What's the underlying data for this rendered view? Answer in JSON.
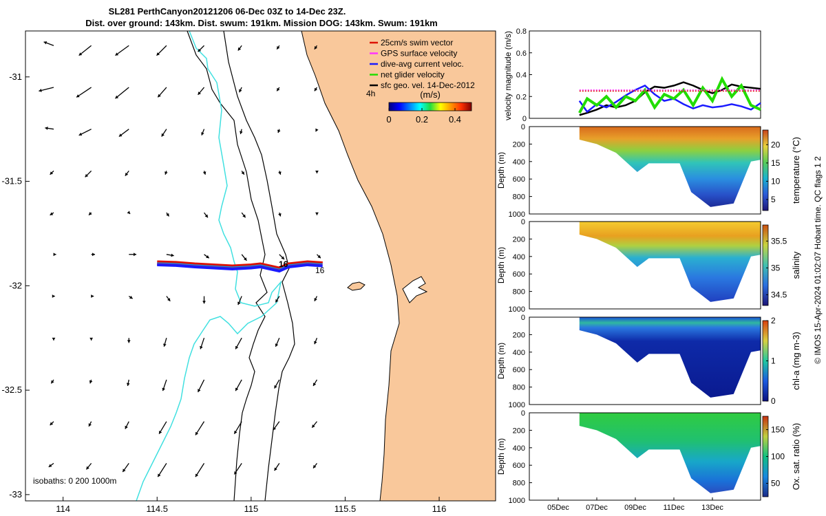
{
  "header": {
    "title_line1": "SL281 PerthCanyon20121206 06-Dec 03Z to 14-Dec 23Z.",
    "title_line2": "Dist. over ground: 143km. Dist. swum: 191km. Mission DOG: 143km. Swum: 191km"
  },
  "credit": "© IMOS 15-Apr-2024 01:02:07 Hobart time. QC flags 1  2",
  "colors": {
    "land": "#f9c89b",
    "sea": "#ffffff",
    "swim": "#dd1100",
    "gps": "#ff33ff",
    "dive_avg": "#1a1aff",
    "net_glider": "#22dd00",
    "sfc": "#000000",
    "trajectory_marker": "#0099ff",
    "isobath_0": "#40e0e0"
  },
  "chart_data": [
    {
      "type": "map",
      "xlabel": "",
      "ylabel": "",
      "xlim": [
        113.8,
        116.3
      ],
      "ylim": [
        -33.03,
        -30.78
      ],
      "xticks": [
        "114",
        "114.5",
        "115",
        "115.5",
        "116"
      ],
      "yticks": [
        "-31",
        "-31.5",
        "-32",
        "-32.5",
        "-33"
      ],
      "legend": [
        {
          "label": "25cm/s swim vector",
          "color": "#dd1100"
        },
        {
          "label": "GPS surface velocity",
          "color": "#ff33ff"
        },
        {
          "label": "dive-avg current veloc.",
          "color": "#1a1aff"
        },
        {
          "label": "net glider velocity",
          "color": "#22dd00"
        },
        {
          "label": "sfc geo. vel. 14-Dec-2012",
          "color": "#000000"
        }
      ],
      "colorbar": {
        "label": "(m/s)",
        "corner_label": "4h",
        "ticks": [
          "0",
          "0.2",
          "0.4"
        ],
        "range": [
          0,
          0.5
        ]
      },
      "isobath_label": "isobaths: 0   200  1000m",
      "day_labels": [
        "16",
        "16"
      ],
      "track": {
        "lon": [
          114.5,
          114.6,
          114.7,
          114.8,
          114.9,
          115.0,
          115.05,
          115.1,
          115.15,
          115.2,
          115.25,
          115.3,
          115.38
        ],
        "lat": [
          -31.89,
          -31.893,
          -31.9,
          -31.905,
          -31.91,
          -31.905,
          -31.9,
          -31.91,
          -31.92,
          -31.9,
          -31.895,
          -31.89,
          -31.895
        ]
      },
      "vectors": {
        "lons": [
          113.95,
          114.15,
          114.35,
          114.55,
          114.75,
          114.95,
          115.15,
          115.35
        ],
        "lats": [
          -30.85,
          -31.05,
          -31.25,
          -31.45,
          -31.65,
          -31.85,
          -32.05,
          -32.25,
          -32.45,
          -32.65,
          -32.85
        ],
        "u": [
          [
            -0.08,
            -0.1,
            -0.11,
            -0.08,
            -0.05,
            -0.03,
            -0.02,
            -0.02
          ],
          [
            -0.12,
            -0.12,
            -0.11,
            -0.07,
            -0.05,
            -0.02,
            -0.02,
            -0.02
          ],
          [
            -0.07,
            -0.1,
            -0.08,
            -0.04,
            -0.02,
            -0.01,
            -0.01,
            -0.01
          ],
          [
            -0.03,
            -0.05,
            -0.03,
            -0.01,
            0.01,
            0.02,
            0.01,
            0.0
          ],
          [
            -0.03,
            -0.02,
            0.01,
            0.02,
            0.03,
            0.03,
            0.01,
            0.0
          ],
          [
            0.02,
            0.03,
            0.06,
            0.06,
            0.04,
            0.04,
            0.04,
            0.03
          ],
          [
            0.01,
            0.02,
            0.03,
            0.03,
            0.0,
            -0.03,
            -0.03,
            -0.02
          ],
          [
            0.0,
            0.0,
            0.0,
            -0.02,
            -0.03,
            -0.05,
            -0.03,
            -0.02
          ],
          [
            -0.02,
            -0.01,
            -0.01,
            -0.03,
            -0.05,
            -0.05,
            -0.04,
            -0.03
          ],
          [
            -0.03,
            -0.02,
            -0.03,
            -0.06,
            -0.07,
            -0.06,
            -0.05,
            -0.04
          ],
          [
            -0.04,
            -0.04,
            -0.05,
            -0.07,
            -0.07,
            -0.06,
            -0.04,
            -0.03
          ]
        ],
        "v": [
          [
            0.03,
            -0.08,
            -0.08,
            -0.08,
            -0.05,
            -0.04,
            -0.03,
            -0.03
          ],
          [
            -0.03,
            -0.08,
            -0.09,
            -0.08,
            -0.06,
            -0.04,
            -0.03,
            -0.03
          ],
          [
            0.01,
            -0.05,
            -0.06,
            -0.06,
            -0.05,
            -0.04,
            -0.03,
            -0.02
          ],
          [
            -0.03,
            -0.05,
            -0.04,
            -0.03,
            -0.03,
            -0.03,
            -0.03,
            -0.02
          ],
          [
            -0.02,
            -0.02,
            -0.01,
            -0.03,
            -0.04,
            -0.04,
            -0.03,
            -0.02
          ],
          [
            0.0,
            0.0,
            0.0,
            -0.01,
            -0.03,
            -0.05,
            -0.04,
            -0.03
          ],
          [
            0.0,
            0.0,
            -0.02,
            -0.04,
            -0.06,
            -0.07,
            -0.05,
            -0.04
          ],
          [
            -0.02,
            -0.02,
            -0.04,
            -0.07,
            -0.09,
            -0.09,
            -0.07,
            -0.05
          ],
          [
            -0.03,
            -0.03,
            -0.05,
            -0.09,
            -0.1,
            -0.09,
            -0.07,
            -0.05
          ],
          [
            -0.03,
            -0.04,
            -0.06,
            -0.1,
            -0.11,
            -0.1,
            -0.07,
            -0.05
          ],
          [
            -0.03,
            -0.05,
            -0.07,
            -0.11,
            -0.11,
            -0.09,
            -0.06,
            -0.04
          ]
        ]
      }
    },
    {
      "type": "line",
      "ylabel": "velocity magnitude (m/s)",
      "xlim": [
        3.5,
        15.5
      ],
      "ylim": [
        0,
        0.8
      ],
      "yticks": [
        "0",
        "0.2",
        "0.4",
        "0.6",
        "0.8"
      ],
      "series": [
        {
          "name": "sfc geo. vel.",
          "color": "#000000",
          "x": [
            6.1,
            6.5,
            7.0,
            7.5,
            8.0,
            8.5,
            9.0,
            9.5,
            10.0,
            10.5,
            11.0,
            11.5,
            12.0,
            12.5,
            13.0,
            13.5,
            14.0,
            14.5,
            15.0,
            15.5
          ],
          "y": [
            0.03,
            0.05,
            0.08,
            0.12,
            0.1,
            0.12,
            0.16,
            0.24,
            0.29,
            0.28,
            0.3,
            0.33,
            0.3,
            0.26,
            0.23,
            0.26,
            0.31,
            0.29,
            0.28,
            0.27
          ]
        },
        {
          "name": "dive-avg current",
          "color": "#1a1aff",
          "x": [
            6.1,
            6.5,
            7.0,
            7.5,
            8.0,
            8.5,
            9.0,
            9.5,
            10.0,
            10.5,
            11.0,
            11.5,
            12.0,
            12.5,
            13.0,
            13.5,
            14.0,
            14.5,
            15.0,
            15.5
          ],
          "y": [
            0.16,
            0.06,
            0.13,
            0.1,
            0.15,
            0.21,
            0.26,
            0.3,
            0.22,
            0.16,
            0.18,
            0.13,
            0.09,
            0.12,
            0.1,
            0.11,
            0.13,
            0.11,
            0.08,
            0.14
          ]
        },
        {
          "name": "net glider velocity",
          "color": "#22dd00",
          "x": [
            6.1,
            6.5,
            7.0,
            7.5,
            8.0,
            8.5,
            9.0,
            9.5,
            10.0,
            10.5,
            11.0,
            11.5,
            12.0,
            12.5,
            13.0,
            13.5,
            14.0,
            14.5,
            15.0,
            15.5
          ],
          "y": [
            0.05,
            0.18,
            0.12,
            0.2,
            0.1,
            0.2,
            0.16,
            0.26,
            0.1,
            0.22,
            0.18,
            0.26,
            0.12,
            0.28,
            0.16,
            0.36,
            0.2,
            0.3,
            0.12,
            0.08
          ]
        },
        {
          "name": "swim vector",
          "color": "#dd1100",
          "x": [
            6.1,
            15.5
          ],
          "y": [
            0.25,
            0.25
          ]
        },
        {
          "name": "GPS surface velocity",
          "color": "#ff33ff",
          "x": [
            6.1,
            15.5
          ],
          "y": [
            0.26,
            0.26
          ]
        }
      ]
    },
    {
      "type": "heatmap",
      "ylabel": "Depth (m)",
      "cbar_label": "temperature (°C)",
      "ylim": [
        1000,
        0
      ],
      "yticks": [
        "0",
        "200",
        "400",
        "600",
        "800",
        "1000"
      ],
      "cbar_ticks": [
        "5",
        "10",
        "15",
        "20"
      ],
      "cbar_range": [
        2,
        24
      ],
      "profile_max_depth": [
        {
          "x": 6.1,
          "d": 150
        },
        {
          "x": 7.0,
          "d": 200
        },
        {
          "x": 8.0,
          "d": 300
        },
        {
          "x": 9.1,
          "d": 520
        },
        {
          "x": 9.7,
          "d": 420
        },
        {
          "x": 11.3,
          "d": 420
        },
        {
          "x": 11.9,
          "d": 750
        },
        {
          "x": 12.9,
          "d": 920
        },
        {
          "x": 14.1,
          "d": 880
        },
        {
          "x": 15.0,
          "d": 400
        },
        {
          "x": 15.5,
          "d": 380
        }
      ]
    },
    {
      "type": "heatmap",
      "ylabel": "Depth (m)",
      "cbar_label": "salinity",
      "ylim": [
        1000,
        0
      ],
      "yticks": [
        "0",
        "200",
        "400",
        "600",
        "800",
        "1000"
      ],
      "cbar_ticks": [
        "34.5",
        "35",
        "35.5"
      ],
      "cbar_range": [
        34.3,
        35.8
      ]
    },
    {
      "type": "heatmap",
      "ylabel": "Depth (m)",
      "cbar_label": "chl-a (mg m-3)",
      "ylim": [
        1000,
        0
      ],
      "yticks": [
        "0",
        "200",
        "400",
        "600",
        "800",
        "1000"
      ],
      "cbar_ticks": [
        "0",
        "1",
        "2"
      ],
      "cbar_range": [
        0,
        2
      ]
    },
    {
      "type": "heatmap",
      "ylabel": "Depth (m)",
      "cbar_label": "Ox. sat. ratio (%)",
      "ylim": [
        1000,
        0
      ],
      "yticks": [
        "0",
        "200",
        "400",
        "600",
        "800",
        "1000"
      ],
      "cbar_ticks": [
        "50",
        "100",
        "150"
      ],
      "cbar_range": [
        25,
        175
      ],
      "xticks": [
        "05Dec",
        "07Dec",
        "09Dec",
        "11Dec",
        "13Dec"
      ],
      "xtick_values": [
        5,
        7,
        9,
        11,
        13
      ]
    }
  ]
}
